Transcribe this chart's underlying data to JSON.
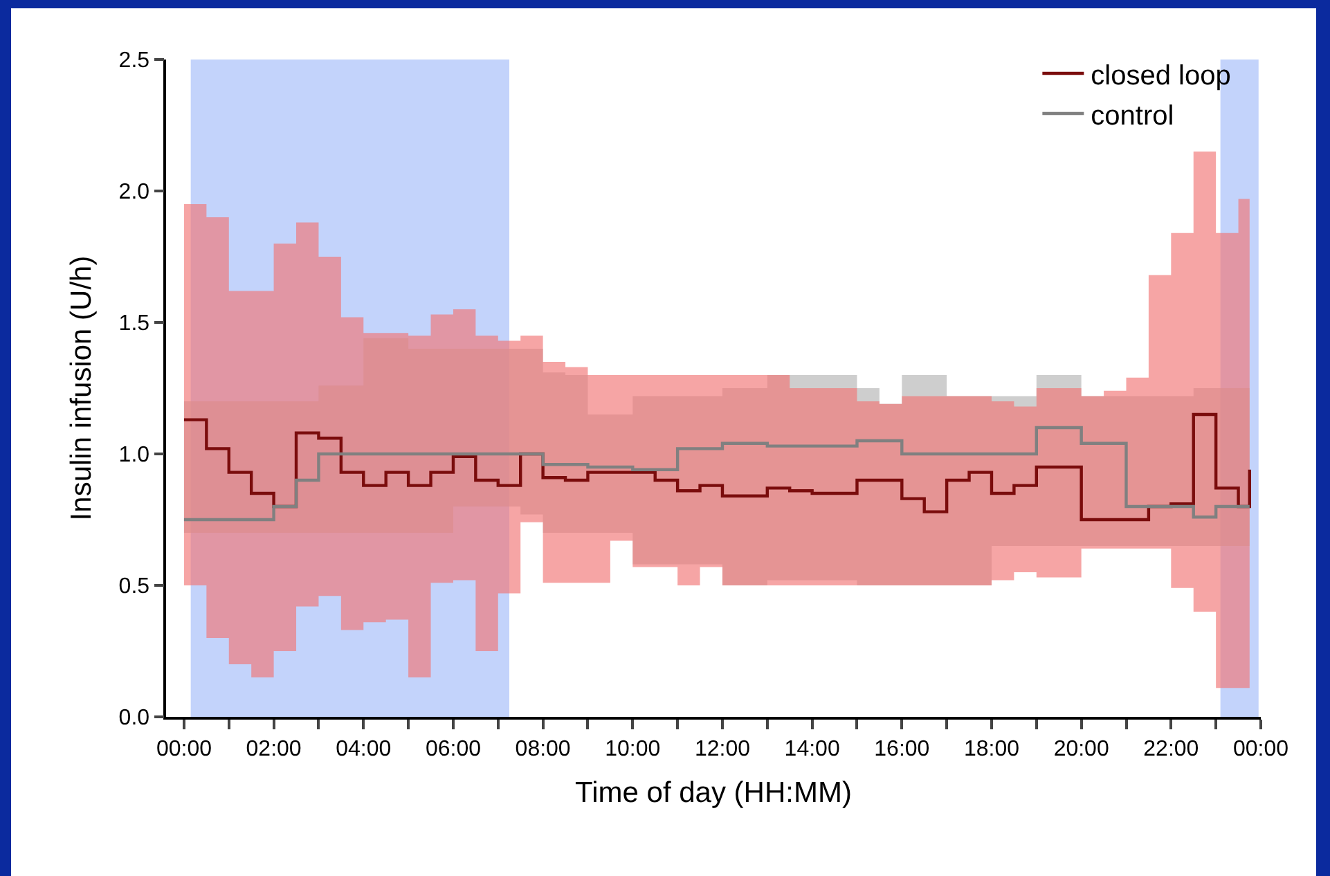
{
  "chart_data": {
    "type": "step",
    "xlabel": "Time of day (HH:MM)",
    "ylabel": "Insulin infusion (U/h)",
    "x": [
      0,
      0.5,
      1,
      1.5,
      2,
      2.5,
      3,
      3.5,
      4,
      4.5,
      5,
      5.5,
      6,
      6.5,
      7,
      7.5,
      8,
      8.5,
      9,
      9.5,
      10,
      10.5,
      11,
      11.5,
      12,
      12.5,
      13,
      13.5,
      14,
      14.5,
      15,
      15.5,
      16,
      16.5,
      17,
      17.5,
      18,
      18.5,
      19,
      19.5,
      20,
      20.5,
      21,
      21.5,
      22,
      22.5,
      23,
      23.5,
      23.75
    ],
    "series": [
      {
        "name": "closed loop",
        "color": "#7a0c0c",
        "values": [
          1.13,
          1.02,
          0.93,
          0.85,
          0.8,
          1.08,
          1.06,
          0.93,
          0.88,
          0.93,
          0.88,
          0.93,
          0.99,
          0.9,
          0.88,
          1.0,
          0.91,
          0.9,
          0.93,
          0.93,
          0.93,
          0.9,
          0.86,
          0.88,
          0.84,
          0.84,
          0.87,
          0.86,
          0.85,
          0.85,
          0.9,
          0.9,
          0.83,
          0.78,
          0.9,
          0.93,
          0.85,
          0.88,
          0.95,
          0.95,
          0.75,
          0.75,
          0.75,
          0.8,
          0.81,
          1.15,
          0.87,
          0.8,
          0.94
        ],
        "upper": [
          1.95,
          1.9,
          1.62,
          1.62,
          1.8,
          1.88,
          1.75,
          1.52,
          1.46,
          1.46,
          1.45,
          1.53,
          1.55,
          1.45,
          1.43,
          1.45,
          1.35,
          1.33,
          1.3,
          1.3,
          1.3,
          1.3,
          1.3,
          1.3,
          1.3,
          1.3,
          1.3,
          1.25,
          1.25,
          1.25,
          1.2,
          1.19,
          1.22,
          1.22,
          1.22,
          1.22,
          1.2,
          1.18,
          1.25,
          1.25,
          1.22,
          1.24,
          1.29,
          1.68,
          1.84,
          2.15,
          1.84,
          1.97,
          1.97
        ],
        "lower": [
          0.5,
          0.3,
          0.2,
          0.15,
          0.25,
          0.42,
          0.46,
          0.33,
          0.36,
          0.37,
          0.15,
          0.51,
          0.52,
          0.25,
          0.47,
          0.74,
          0.51,
          0.51,
          0.51,
          0.67,
          0.57,
          0.57,
          0.5,
          0.57,
          0.5,
          0.5,
          0.5,
          0.5,
          0.5,
          0.5,
          0.5,
          0.5,
          0.5,
          0.5,
          0.5,
          0.5,
          0.52,
          0.55,
          0.53,
          0.53,
          0.64,
          0.64,
          0.64,
          0.64,
          0.49,
          0.4,
          0.11,
          0.11,
          0.25
        ]
      },
      {
        "name": "control",
        "color": "#808080",
        "values": [
          0.75,
          0.75,
          0.75,
          0.75,
          0.8,
          0.9,
          1.0,
          1.0,
          1.0,
          1.0,
          1.0,
          1.0,
          1.0,
          1.0,
          1.0,
          1.0,
          0.96,
          0.96,
          0.95,
          0.95,
          0.94,
          0.94,
          1.02,
          1.02,
          1.04,
          1.04,
          1.03,
          1.03,
          1.03,
          1.03,
          1.05,
          1.05,
          1.0,
          1.0,
          1.0,
          1.0,
          1.0,
          1.0,
          1.1,
          1.1,
          1.04,
          1.04,
          0.8,
          0.8,
          0.8,
          0.76,
          0.8,
          0.8,
          0.8
        ],
        "upper": [
          1.2,
          1.2,
          1.2,
          1.2,
          1.2,
          1.2,
          1.26,
          1.26,
          1.44,
          1.44,
          1.4,
          1.4,
          1.4,
          1.4,
          1.4,
          1.4,
          1.31,
          1.3,
          1.15,
          1.15,
          1.22,
          1.22,
          1.22,
          1.22,
          1.25,
          1.25,
          1.3,
          1.3,
          1.3,
          1.3,
          1.25,
          1.19,
          1.3,
          1.3,
          1.22,
          1.22,
          1.22,
          1.22,
          1.3,
          1.3,
          1.22,
          1.22,
          1.22,
          1.22,
          1.22,
          1.25,
          1.25,
          1.25,
          1.25
        ],
        "lower": [
          0.7,
          0.7,
          0.7,
          0.7,
          0.7,
          0.7,
          0.7,
          0.7,
          0.7,
          0.7,
          0.7,
          0.7,
          0.8,
          0.8,
          0.8,
          0.77,
          0.7,
          0.7,
          0.7,
          0.7,
          0.58,
          0.58,
          0.58,
          0.58,
          0.5,
          0.5,
          0.52,
          0.52,
          0.52,
          0.52,
          0.5,
          0.5,
          0.5,
          0.5,
          0.5,
          0.5,
          0.65,
          0.65,
          0.65,
          0.65,
          0.65,
          0.65,
          0.65,
          0.65,
          0.65,
          0.65,
          0.65,
          0.65,
          0.65
        ]
      }
    ],
    "bands": [
      {
        "axis": "x",
        "from": 0.15,
        "to": 7.25,
        "color": "#c3d3fb"
      },
      {
        "axis": "x",
        "from": 23.1,
        "to": 23.95,
        "color": "#c3d3fb"
      }
    ],
    "xlim": [
      -0.4,
      24
    ],
    "xticks": [
      {
        "value": 0,
        "label": "00:00"
      },
      {
        "value": 1,
        "label": null
      },
      {
        "value": 2,
        "label": "02:00"
      },
      {
        "value": 3,
        "label": null
      },
      {
        "value": 4,
        "label": "04:00"
      },
      {
        "value": 5,
        "label": null
      },
      {
        "value": 6,
        "label": "06:00"
      },
      {
        "value": 7,
        "label": null
      },
      {
        "value": 8,
        "label": "08:00"
      },
      {
        "value": 9,
        "label": null
      },
      {
        "value": 10,
        "label": "10:00"
      },
      {
        "value": 11,
        "label": null
      },
      {
        "value": 12,
        "label": "12:00"
      },
      {
        "value": 13,
        "label": null
      },
      {
        "value": 14,
        "label": "14:00"
      },
      {
        "value": 15,
        "label": null
      },
      {
        "value": 16,
        "label": "16:00"
      },
      {
        "value": 17,
        "label": null
      },
      {
        "value": 18,
        "label": "18:00"
      },
      {
        "value": 19,
        "label": null
      },
      {
        "value": 20,
        "label": "20:00"
      },
      {
        "value": 21,
        "label": null
      },
      {
        "value": 22,
        "label": "22:00"
      },
      {
        "value": 23,
        "label": null
      },
      {
        "value": 24,
        "label": "00:00"
      }
    ],
    "ylim": [
      0,
      2.5
    ],
    "yticks": [
      {
        "value": 0,
        "label": "0.0"
      },
      {
        "value": 0.5,
        "label": "0.5"
      },
      {
        "value": 1,
        "label": "1.0"
      },
      {
        "value": 1.5,
        "label": "1.5"
      },
      {
        "value": 2,
        "label": "2.0"
      },
      {
        "value": 2.5,
        "label": "2.5"
      }
    ],
    "legend": "top right"
  }
}
